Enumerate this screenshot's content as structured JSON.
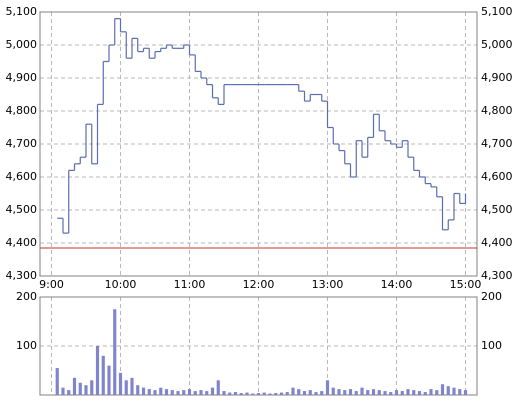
{
  "chart_data": [
    {
      "type": "line",
      "step": true,
      "color": "#5b6db3",
      "x": [
        545,
        550,
        555,
        560,
        565,
        570,
        575,
        580,
        585,
        590,
        595,
        600,
        605,
        610,
        615,
        620,
        625,
        630,
        635,
        640,
        645,
        650,
        655,
        660,
        665,
        670,
        675,
        680,
        685,
        690,
        695,
        700,
        705,
        710,
        715,
        720,
        725,
        730,
        735,
        740,
        745,
        750,
        755,
        760,
        765,
        770,
        775,
        780,
        785,
        790,
        795,
        800,
        805,
        810,
        815,
        820,
        825,
        830,
        835,
        840,
        845,
        850,
        855,
        860,
        865,
        870,
        875,
        880,
        885,
        890,
        895,
        900
      ],
      "values": [
        4475,
        4430,
        4620,
        4640,
        4660,
        4760,
        4640,
        4820,
        4950,
        5000,
        5080,
        5040,
        4960,
        5020,
        4980,
        4990,
        4960,
        4980,
        4990,
        5000,
        4990,
        4990,
        5000,
        4970,
        4920,
        4900,
        4880,
        4840,
        4820,
        4880,
        4880,
        4880,
        4880,
        4880,
        4880,
        4880,
        4880,
        4880,
        4880,
        4880,
        4880,
        4880,
        4860,
        4830,
        4850,
        4850,
        4830,
        4750,
        4700,
        4680,
        4640,
        4600,
        4710,
        4660,
        4720,
        4790,
        4740,
        4710,
        4700,
        4690,
        4710,
        4660,
        4620,
        4600,
        4580,
        4570,
        4540,
        4440,
        4470,
        4550,
        4520,
        4550
      ],
      "xlim": [
        530,
        910
      ],
      "xticks": [
        {
          "value": 540,
          "label": "9:00"
        },
        {
          "value": 600,
          "label": "10:00"
        },
        {
          "value": 660,
          "label": "11:00"
        },
        {
          "value": 720,
          "label": "12:00"
        },
        {
          "value": 780,
          "label": "13:00"
        },
        {
          "value": 840,
          "label": "14:00"
        },
        {
          "value": 900,
          "label": "15:00"
        }
      ],
      "ylim": [
        4300,
        5100
      ],
      "yticks": [
        {
          "value": 4300,
          "label": "4,300"
        },
        {
          "value": 4400,
          "label": "4,400"
        },
        {
          "value": 4500,
          "label": "4,500"
        },
        {
          "value": 4600,
          "label": "4,600"
        },
        {
          "value": 4700,
          "label": "4,700"
        },
        {
          "value": 4800,
          "label": "4,800"
        },
        {
          "value": 4900,
          "label": "4,900"
        },
        {
          "value": 5000,
          "label": "5,000"
        },
        {
          "value": 5100,
          "label": "5,100"
        }
      ],
      "reference_line": {
        "value": 4385,
        "color": "#c83232"
      },
      "grid": true
    },
    {
      "type": "bar",
      "color": "#7f84cc",
      "x": [
        545,
        550,
        555,
        560,
        565,
        570,
        575,
        580,
        585,
        590,
        595,
        600,
        605,
        610,
        615,
        620,
        625,
        630,
        635,
        640,
        645,
        650,
        655,
        660,
        665,
        670,
        675,
        680,
        685,
        690,
        695,
        700,
        705,
        710,
        715,
        720,
        725,
        730,
        735,
        740,
        745,
        750,
        755,
        760,
        765,
        770,
        775,
        780,
        785,
        790,
        795,
        800,
        805,
        810,
        815,
        820,
        825,
        830,
        835,
        840,
        845,
        850,
        855,
        860,
        865,
        870,
        875,
        880,
        885,
        890,
        895,
        900
      ],
      "values": [
        55,
        15,
        10,
        35,
        25,
        20,
        30,
        100,
        80,
        60,
        175,
        45,
        30,
        35,
        20,
        15,
        12,
        10,
        15,
        12,
        10,
        8,
        10,
        12,
        8,
        10,
        8,
        15,
        30,
        8,
        5,
        6,
        4,
        5,
        3,
        4,
        5,
        3,
        4,
        5,
        6,
        15,
        12,
        8,
        10,
        6,
        8,
        30,
        15,
        12,
        10,
        12,
        8,
        15,
        10,
        12,
        10,
        8,
        6,
        10,
        8,
        12,
        10,
        8,
        6,
        12,
        10,
        22,
        18,
        15,
        12,
        10
      ],
      "ylim": [
        0,
        200
      ],
      "yticks": [
        100,
        200
      ],
      "grid": true
    }
  ]
}
